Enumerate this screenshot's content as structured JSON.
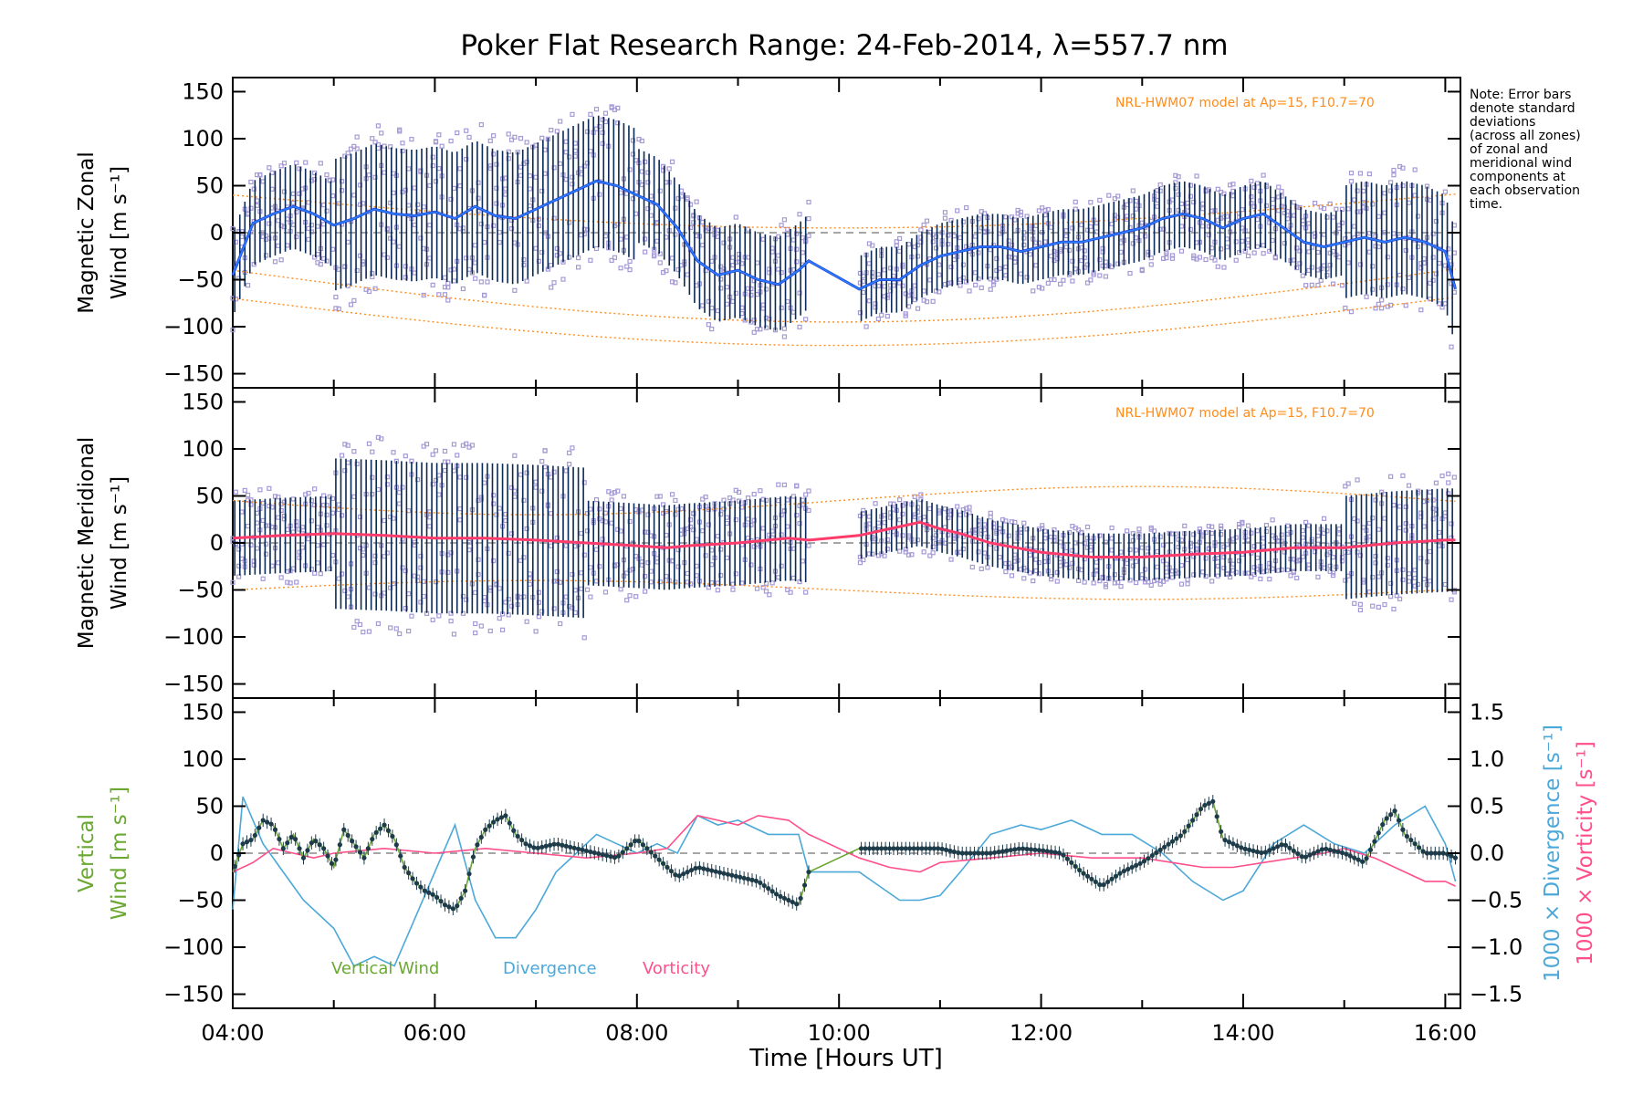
{
  "title": "Poker Flat Research Range: 24-Feb-2014, λ=557.7 nm",
  "note": [
    "Note: Error bars",
    "denote standard",
    "deviations",
    "(across all zones)",
    "of zonal and",
    "meridional wind",
    "components at",
    "each observation",
    "time."
  ],
  "x_axis": {
    "label": "Time [Hours UT]",
    "ticks": [
      "04:00",
      "06:00",
      "08:00",
      "10:00",
      "12:00",
      "14:00",
      "16:00"
    ]
  },
  "colors": {
    "zonal": "#1f3fd6",
    "zonal_mean": "#2b86ff",
    "meridional": "#ff3b6b",
    "errorbar": "#0b2a55",
    "scatter": "#a69ad6",
    "model": "#ff8c1a",
    "vertical": "#6aa832",
    "divergence": "#4ba8d8",
    "vorticity": "#ff4f8b",
    "points": "#1e3b4a",
    "zero": "#888888"
  },
  "panels": {
    "zonal": {
      "ylabel_1": "Magnetic Zonal",
      "ylabel_2": "Wind [m s⁻¹]",
      "yticks": [
        "150",
        "100",
        "50",
        "0",
        "−50",
        "−100",
        "−150"
      ],
      "model_label": "NRL-HWM07 model at Ap=15, F10.7=70"
    },
    "meridional": {
      "ylabel_1": "Magnetic Meridional",
      "ylabel_2": "Wind [m s⁻¹]",
      "yticks": [
        "150",
        "100",
        "50",
        "0",
        "−50",
        "−100",
        "−150"
      ],
      "model_label": "NRL-HWM07 model at Ap=15, F10.7=70"
    },
    "vertical": {
      "ylabel_1": "Vertical",
      "ylabel_2": "Wind [m s⁻¹]",
      "yticks": [
        "150",
        "100",
        "50",
        "0",
        "−50",
        "−100",
        "−150"
      ],
      "right_ticks": [
        "1.5",
        "1.0",
        "0.5",
        "0.0",
        "−0.5",
        "−1.0",
        "−1.5"
      ],
      "right_label_1": "1000 × Divergence [s⁻¹]",
      "right_label_2": "1000 × Vorticity [s⁻¹]",
      "legend": [
        "Vertical Wind",
        "Divergence",
        "Vorticity"
      ]
    }
  },
  "chart_data": {
    "type": "line",
    "x_range_hours": [
      4.0,
      16.15
    ],
    "y_range": [
      -165,
      165
    ],
    "right_y_range": [
      -1.65,
      1.65
    ],
    "series": [
      {
        "name": "Magnetic Zonal Wind",
        "x": [
          4.0,
          4.2,
          4.4,
          4.6,
          4.8,
          5.0,
          5.2,
          5.4,
          5.6,
          5.8,
          6.0,
          6.2,
          6.4,
          6.6,
          6.8,
          7.0,
          7.2,
          7.4,
          7.6,
          7.8,
          8.0,
          8.2,
          8.4,
          8.6,
          8.8,
          9.0,
          9.2,
          9.4,
          9.6,
          9.7,
          10.2,
          10.4,
          10.6,
          10.8,
          11.0,
          11.2,
          11.4,
          11.6,
          11.8,
          12.0,
          12.2,
          12.4,
          12.6,
          12.8,
          13.0,
          13.2,
          13.4,
          13.6,
          13.8,
          14.0,
          14.2,
          14.4,
          14.6,
          14.8,
          15.0,
          15.2,
          15.4,
          15.6,
          15.8,
          16.0,
          16.1
        ],
        "y": [
          -45,
          10,
          20,
          28,
          20,
          8,
          15,
          25,
          20,
          18,
          22,
          15,
          28,
          18,
          15,
          25,
          35,
          45,
          55,
          50,
          40,
          30,
          5,
          -30,
          -45,
          -40,
          -50,
          -55,
          -40,
          -30,
          -60,
          -50,
          -50,
          -35,
          -25,
          -20,
          -15,
          -15,
          -20,
          -15,
          -10,
          -10,
          -5,
          0,
          5,
          15,
          20,
          15,
          5,
          15,
          20,
          5,
          -10,
          -15,
          -10,
          -5,
          -10,
          -5,
          -10,
          -20,
          -60
        ]
      },
      {
        "name": "Magnetic Meridional Wind",
        "x": [
          4.0,
          4.5,
          5.0,
          5.5,
          6.0,
          6.5,
          7.0,
          7.5,
          8.0,
          8.3,
          8.5,
          9.0,
          9.5,
          9.7,
          10.2,
          10.5,
          10.8,
          11.0,
          11.2,
          11.5,
          12.0,
          12.5,
          13.0,
          13.5,
          14.0,
          14.5,
          15.0,
          15.5,
          16.0,
          16.1
        ],
        "y": [
          5,
          8,
          10,
          8,
          5,
          5,
          3,
          0,
          -3,
          -5,
          -3,
          0,
          5,
          3,
          8,
          15,
          22,
          15,
          10,
          0,
          -10,
          -15,
          -15,
          -12,
          -10,
          -5,
          -5,
          0,
          3,
          3
        ]
      },
      {
        "name": "Vertical Wind",
        "x": [
          4.0,
          4.1,
          4.2,
          4.3,
          4.4,
          4.5,
          4.6,
          4.7,
          4.8,
          4.9,
          5.0,
          5.1,
          5.2,
          5.3,
          5.4,
          5.5,
          5.6,
          5.7,
          5.8,
          5.9,
          6.0,
          6.1,
          6.2,
          6.3,
          6.4,
          6.5,
          6.6,
          6.7,
          6.8,
          6.9,
          7.0,
          7.2,
          7.4,
          7.6,
          7.8,
          8.0,
          8.2,
          8.4,
          8.6,
          8.8,
          9.0,
          9.2,
          9.4,
          9.6,
          9.7,
          10.2,
          10.5,
          10.8,
          11.0,
          11.2,
          11.5,
          11.8,
          12.0,
          12.2,
          12.4,
          12.6,
          12.8,
          13.0,
          13.2,
          13.4,
          13.6,
          13.7,
          13.8,
          14.0,
          14.2,
          14.4,
          14.6,
          14.8,
          15.0,
          15.2,
          15.4,
          15.5,
          15.6,
          15.8,
          16.0,
          16.1
        ],
        "y": [
          -20,
          10,
          15,
          35,
          30,
          5,
          20,
          -5,
          15,
          5,
          -15,
          25,
          10,
          -5,
          20,
          30,
          15,
          -15,
          -30,
          -40,
          -45,
          -55,
          -60,
          -40,
          5,
          25,
          35,
          40,
          20,
          10,
          5,
          10,
          5,
          0,
          -5,
          15,
          -5,
          -25,
          -15,
          -20,
          -25,
          -30,
          -45,
          -55,
          -20,
          5,
          5,
          5,
          5,
          0,
          0,
          5,
          3,
          0,
          -20,
          -35,
          -20,
          -10,
          5,
          20,
          50,
          55,
          15,
          5,
          0,
          10,
          -5,
          5,
          0,
          -10,
          35,
          45,
          20,
          0,
          0,
          -5
        ]
      },
      {
        "name": "Divergence",
        "axis": "right",
        "x": [
          4.0,
          4.1,
          4.3,
          4.5,
          4.7,
          5.0,
          5.2,
          5.4,
          5.6,
          5.8,
          6.0,
          6.2,
          6.4,
          6.6,
          6.8,
          7.0,
          7.2,
          7.4,
          7.6,
          7.8,
          8.0,
          8.2,
          8.4,
          8.6,
          8.8,
          9.0,
          9.3,
          9.6,
          9.7,
          10.2,
          10.4,
          10.6,
          10.8,
          11.0,
          11.2,
          11.5,
          11.8,
          12.0,
          12.3,
          12.6,
          12.9,
          13.2,
          13.5,
          13.8,
          14.0,
          14.3,
          14.6,
          14.9,
          15.2,
          15.5,
          15.8,
          16.0,
          16.1
        ],
        "y": [
          -0.6,
          0.6,
          0.1,
          -0.2,
          -0.5,
          -0.8,
          -1.2,
          -1.1,
          -1.2,
          -0.7,
          -0.2,
          0.3,
          -0.5,
          -0.9,
          -0.9,
          -0.6,
          -0.2,
          0.0,
          0.2,
          0.1,
          0.0,
          0.1,
          0.0,
          0.4,
          0.3,
          0.35,
          0.2,
          0.2,
          -0.2,
          -0.2,
          -0.35,
          -0.5,
          -0.5,
          -0.45,
          -0.2,
          0.2,
          0.3,
          0.25,
          0.35,
          0.2,
          0.2,
          0.0,
          -0.3,
          -0.5,
          -0.4,
          0.1,
          0.3,
          0.1,
          0.0,
          0.3,
          0.5,
          0.1,
          -0.3
        ]
      },
      {
        "name": "Vorticity",
        "axis": "right",
        "x": [
          4.0,
          4.2,
          4.4,
          4.6,
          4.8,
          5.0,
          5.5,
          6.0,
          6.5,
          7.0,
          7.5,
          8.0,
          8.3,
          8.6,
          8.8,
          9.0,
          9.2,
          9.5,
          9.7,
          10.2,
          10.5,
          10.8,
          11.0,
          11.5,
          12.0,
          12.5,
          13.0,
          13.3,
          13.6,
          13.9,
          14.2,
          14.5,
          14.8,
          15.0,
          15.3,
          15.6,
          15.8,
          16.0,
          16.1
        ],
        "y": [
          -0.2,
          -0.1,
          0.05,
          0.0,
          -0.05,
          0.0,
          0.05,
          0.0,
          0.05,
          0.0,
          -0.05,
          0.0,
          0.05,
          0.4,
          0.35,
          0.3,
          0.4,
          0.35,
          0.2,
          -0.05,
          -0.15,
          -0.2,
          -0.1,
          -0.05,
          0.0,
          -0.05,
          -0.05,
          -0.1,
          -0.15,
          -0.15,
          -0.1,
          -0.05,
          0.0,
          0.05,
          -0.05,
          -0.2,
          -0.3,
          -0.3,
          -0.35
        ]
      }
    ]
  }
}
